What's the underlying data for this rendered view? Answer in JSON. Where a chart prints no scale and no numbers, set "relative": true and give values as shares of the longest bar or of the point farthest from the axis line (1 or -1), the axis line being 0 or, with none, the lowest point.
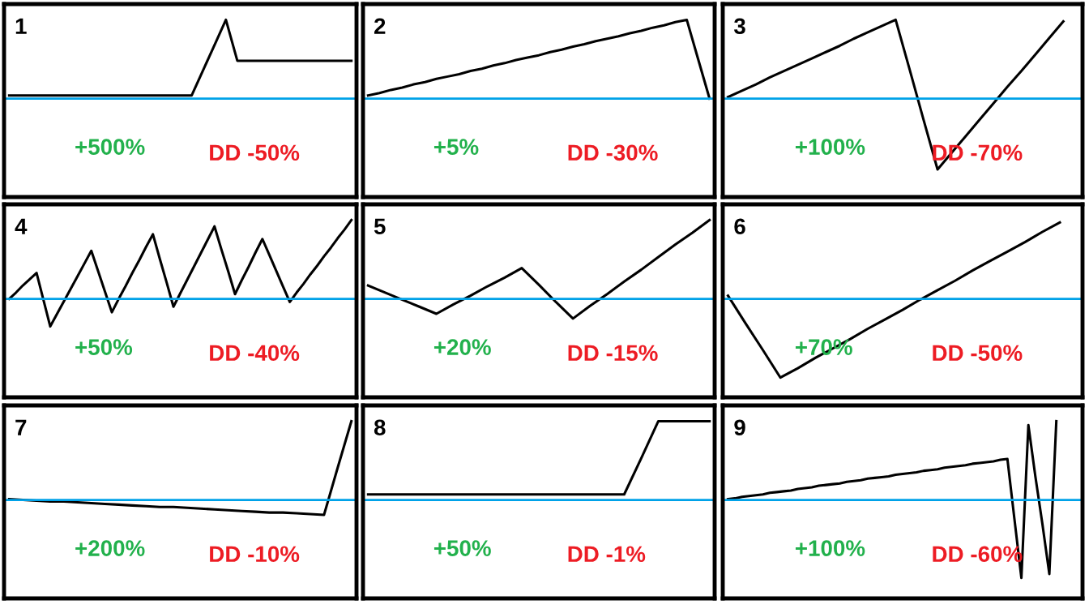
{
  "chart_data": [
    {
      "type": "line",
      "title": "1",
      "relative": true,
      "ref_lines": [
        {
          "axis": "y",
          "value": 0,
          "color": "#00a2e8"
        }
      ],
      "categories": [
        null,
        null,
        null,
        null,
        null,
        null,
        null,
        null,
        null,
        null,
        null,
        null,
        null,
        null,
        null,
        null,
        null,
        null,
        null,
        null,
        null,
        null,
        null,
        null,
        null,
        null,
        null,
        null,
        null,
        null,
        null
      ],
      "series": [
        {
          "color": "#000000",
          "values": [
            0.04,
            0.04,
            0.04,
            0.04,
            0.04,
            0.04,
            0.04,
            0.04,
            0.04,
            0.04,
            0.04,
            0.04,
            0.04,
            0.04,
            0.04,
            0.04,
            0.04,
            0.36,
            0.68,
            1,
            0.48,
            0.48,
            0.48,
            0.48,
            0.48,
            0.48,
            0.48,
            0.48,
            0.48,
            0.48,
            0.48
          ]
        }
      ],
      "annotations": [
        "+500%",
        "DD -50%"
      ]
    },
    {
      "type": "line",
      "title": "2",
      "relative": true,
      "ref_lines": [
        {
          "axis": "y",
          "value": 0,
          "color": "#00a2e8"
        }
      ],
      "categories": [
        null,
        null,
        null,
        null,
        null,
        null,
        null,
        null,
        null,
        null,
        null,
        null,
        null,
        null,
        null,
        null,
        null,
        null,
        null,
        null,
        null,
        null,
        null,
        null,
        null,
        null,
        null,
        null,
        null,
        null,
        null
      ],
      "series": [
        {
          "color": "#000000",
          "values": [
            0.04,
            0.07,
            0.11,
            0.14,
            0.18,
            0.21,
            0.25,
            0.28,
            0.31,
            0.35,
            0.38,
            0.42,
            0.45,
            0.49,
            0.52,
            0.55,
            0.59,
            0.62,
            0.66,
            0.69,
            0.73,
            0.76,
            0.79,
            0.83,
            0.86,
            0.9,
            0.93,
            0.97,
            1,
            0.5,
            0
          ]
        }
      ],
      "annotations": [
        "+5%",
        "DD -30%"
      ]
    },
    {
      "type": "line",
      "title": "3",
      "relative": true,
      "ref_lines": [
        {
          "axis": "y",
          "value": 0,
          "color": "#00a2e8"
        }
      ],
      "categories": [
        null,
        null,
        null,
        null,
        null,
        null,
        null,
        null,
        null,
        null,
        null,
        null,
        null,
        null,
        null,
        null,
        null,
        null,
        null,
        null,
        null,
        null,
        null,
        null,
        null,
        null
      ],
      "series": [
        {
          "color": "#000000",
          "values": [
            0.02,
            0.1,
            0.18,
            0.27,
            0.35,
            0.43,
            0.51,
            0.59,
            0.67,
            0.76,
            0.84,
            0.92,
            1,
            0.37,
            -0.27,
            -0.9,
            -0.69,
            -0.48,
            -0.27,
            -0.06,
            0.15,
            0.35,
            0.56,
            0.77,
            0.98,
            null
          ]
        }
      ],
      "annotations": [
        "+100%",
        "DD -70%"
      ]
    },
    {
      "type": "line",
      "title": "4",
      "relative": true,
      "ref_lines": [
        {
          "axis": "y",
          "value": 0,
          "color": "#00a2e8"
        }
      ],
      "categories": [
        null,
        null,
        null,
        null,
        null,
        null,
        null,
        null,
        null,
        null,
        null,
        null,
        null,
        null,
        null,
        null,
        null,
        null,
        null,
        null,
        null,
        null,
        null,
        null,
        null,
        null,
        null,
        null,
        null,
        null,
        null,
        null,
        null,
        null,
        null,
        null,
        null,
        null,
        null,
        null,
        null,
        null,
        null,
        null,
        null,
        null,
        null,
        null,
        null,
        null,
        null
      ],
      "series": [
        {
          "color": "#000000",
          "values": [
            0,
            0.08,
            0.17,
            0.25,
            0.33,
            -0.01,
            -0.35,
            -0.19,
            -0.03,
            0.13,
            0.29,
            0.45,
            0.61,
            0.35,
            0.09,
            -0.17,
            0,
            0.16,
            0.33,
            0.49,
            0.66,
            0.82,
            0.51,
            0.21,
            -0.1,
            0.07,
            0.24,
            0.41,
            0.58,
            0.75,
            0.92,
            0.63,
            0.35,
            0.06,
            0.24,
            0.41,
            0.59,
            0.76,
            0.56,
            0.36,
            0.16,
            -0.04,
            0.08,
            0.19,
            0.31,
            0.42,
            0.54,
            0.65,
            0.77,
            0.88,
            1
          ]
        }
      ],
      "annotations": [
        "+50%",
        "DD -40%"
      ]
    },
    {
      "type": "line",
      "title": "5",
      "relative": true,
      "ref_lines": [
        {
          "axis": "y",
          "value": 0,
          "color": "#00a2e8"
        }
      ],
      "categories": [
        null,
        null,
        null,
        null,
        null,
        null,
        null,
        null,
        null,
        null,
        null,
        null,
        null,
        null,
        null,
        null,
        null,
        null,
        null,
        null,
        null
      ],
      "series": [
        {
          "color": "#000000",
          "values": [
            0.17,
            0.08,
            -0.01,
            -0.1,
            -0.19,
            -0.07,
            0.04,
            0.16,
            0.27,
            0.39,
            0.18,
            -0.04,
            -0.25,
            -0.09,
            0.06,
            0.22,
            0.37,
            0.53,
            0.69,
            0.84,
            1
          ]
        }
      ],
      "annotations": [
        "+20%",
        "DD -15%"
      ]
    },
    {
      "type": "line",
      "title": "6",
      "relative": true,
      "ref_lines": [
        {
          "axis": "y",
          "value": 0,
          "color": "#00a2e8"
        }
      ],
      "categories": [
        null,
        null,
        null,
        null,
        null,
        null,
        null,
        null,
        null,
        null,
        null,
        null,
        null,
        null,
        null,
        null,
        null,
        null,
        null,
        null,
        null
      ],
      "series": [
        {
          "color": "#000000",
          "values": [
            0.04,
            -0.31,
            -0.65,
            -1,
            -0.88,
            -0.75,
            -0.63,
            -0.51,
            -0.38,
            -0.26,
            -0.14,
            -0.01,
            0.11,
            0.23,
            0.36,
            0.48,
            0.6,
            0.72,
            0.85,
            0.97,
            null
          ]
        }
      ],
      "annotations": [
        "+70%",
        "DD -50%"
      ]
    },
    {
      "type": "line",
      "title": "7",
      "relative": true,
      "ref_lines": [
        {
          "axis": "y",
          "value": 0,
          "color": "#00a2e8"
        }
      ],
      "categories": [
        null,
        null,
        null,
        null,
        null,
        null,
        null,
        null,
        null,
        null,
        null,
        null,
        null,
        null,
        null,
        null,
        null,
        null,
        null,
        null,
        null,
        null,
        null,
        null,
        null,
        null
      ],
      "series": [
        {
          "color": "#000000",
          "values": [
            0.01,
            0,
            -0.01,
            -0.02,
            -0.02,
            -0.03,
            -0.04,
            -0.05,
            -0.06,
            -0.07,
            -0.08,
            -0.09,
            -0.09,
            -0.1,
            -0.11,
            -0.12,
            -0.13,
            -0.14,
            -0.15,
            -0.16,
            -0.16,
            -0.17,
            -0.18,
            -0.19,
            0.41,
            1
          ]
        }
      ],
      "annotations": [
        "+200%",
        "DD -10%"
      ]
    },
    {
      "type": "line",
      "title": "8",
      "relative": true,
      "ref_lines": [
        {
          "axis": "y",
          "value": 0,
          "color": "#00a2e8"
        }
      ],
      "categories": [
        null,
        null,
        null,
        null,
        null,
        null,
        null,
        null,
        null,
        null,
        null,
        null,
        null,
        null,
        null,
        null,
        null,
        null,
        null,
        null,
        null
      ],
      "series": [
        {
          "color": "#000000",
          "values": [
            0.07,
            0.07,
            0.07,
            0.07,
            0.07,
            0.07,
            0.07,
            0.07,
            0.07,
            0.07,
            0.07,
            0.07,
            0.07,
            0.07,
            0.07,
            0.07,
            0.53,
            1,
            1,
            1,
            1
          ]
        }
      ],
      "annotations": [
        "+50%",
        "DD -1%"
      ]
    },
    {
      "type": "line",
      "title": "9",
      "relative": true,
      "ref_lines": [
        {
          "axis": "y",
          "value": 0,
          "color": "#00a2e8"
        }
      ],
      "categories": [
        null,
        null,
        null,
        null,
        null,
        null,
        null,
        null,
        null,
        null,
        null,
        null,
        null,
        null,
        null,
        null,
        null,
        null,
        null,
        null,
        null,
        null,
        null,
        null,
        null,
        null,
        null,
        null,
        null,
        null,
        null,
        null,
        null,
        null,
        null,
        null,
        null,
        null,
        null,
        null,
        null,
        null,
        null,
        null,
        null,
        null,
        null,
        null,
        null,
        null,
        null
      ],
      "series": [
        {
          "color": "#000000",
          "values": [
            0.01,
            0.02,
            0.04,
            0.05,
            0.06,
            0.07,
            0.09,
            0.1,
            0.11,
            0.12,
            0.14,
            0.15,
            0.16,
            0.18,
            0.19,
            0.2,
            0.21,
            0.23,
            0.24,
            0.25,
            0.27,
            0.28,
            0.29,
            0.3,
            0.32,
            0.33,
            0.34,
            0.35,
            0.37,
            0.38,
            0.39,
            0.41,
            0.42,
            0.43,
            0.44,
            0.46,
            0.47,
            0.48,
            0.49,
            0.51,
            0.52,
            -0.24,
            -0.99,
            0.95,
            0.3,
            -0.3,
            -0.94,
            1,
            null,
            null,
            null
          ]
        }
      ],
      "annotations": [
        "+100%",
        "DD -60%"
      ]
    }
  ]
}
